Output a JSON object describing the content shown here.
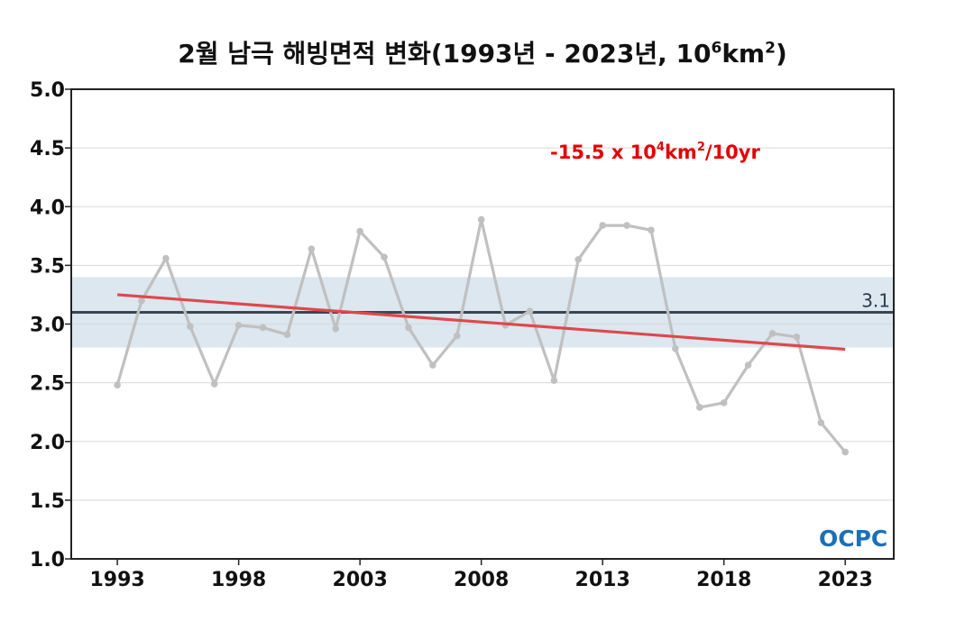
{
  "chart_data": {
    "type": "line",
    "title_text": "2월 남극 해빙면적 변화(1993년 - 2023년, 10",
    "title_sup": "6",
    "title_unit": "km",
    "title_sup2": "2",
    "title_close": ")",
    "x": [
      1993,
      1994,
      1995,
      1996,
      1997,
      1998,
      1999,
      2000,
      2001,
      2002,
      2003,
      2004,
      2005,
      2006,
      2007,
      2008,
      2009,
      2010,
      2011,
      2012,
      2013,
      2014,
      2015,
      2016,
      2017,
      2018,
      2019,
      2020,
      2021,
      2022,
      2023
    ],
    "series": [
      {
        "values": [
          2.48,
          3.2,
          3.56,
          2.98,
          2.49,
          2.99,
          2.97,
          2.91,
          3.64,
          2.96,
          3.79,
          3.57,
          2.97,
          2.65,
          2.9,
          3.89,
          2.99,
          3.11,
          2.52,
          3.55,
          3.84,
          3.84,
          3.8,
          2.79,
          2.29,
          2.33,
          2.65,
          2.92,
          2.89,
          2.16,
          1.91
        ],
        "color": "#c0c0c0"
      }
    ],
    "trend": {
      "start": [
        1993,
        3.25
      ],
      "end": [
        2023,
        2.785
      ],
      "color": "#e0474c"
    },
    "trend_label_parts": [
      "-15.5 x 10",
      "4",
      "km",
      "2",
      "/10yr"
    ],
    "reference": {
      "value": 3.1,
      "label": "3.1",
      "band": [
        2.8,
        3.4
      ],
      "line_color": "#3a4652",
      "band_color": "#dce7f0"
    },
    "xticks": [
      1993,
      1998,
      2003,
      2008,
      2013,
      2018,
      2023
    ],
    "yticks": [
      "1.0",
      "1.5",
      "2.0",
      "2.5",
      "3.0",
      "3.5",
      "4.0",
      "4.5",
      "5.0"
    ],
    "xlim": [
      1991.1,
      2025.0
    ],
    "ylim": [
      1.0,
      5.0
    ],
    "grid": true,
    "logo": "OCPC"
  }
}
